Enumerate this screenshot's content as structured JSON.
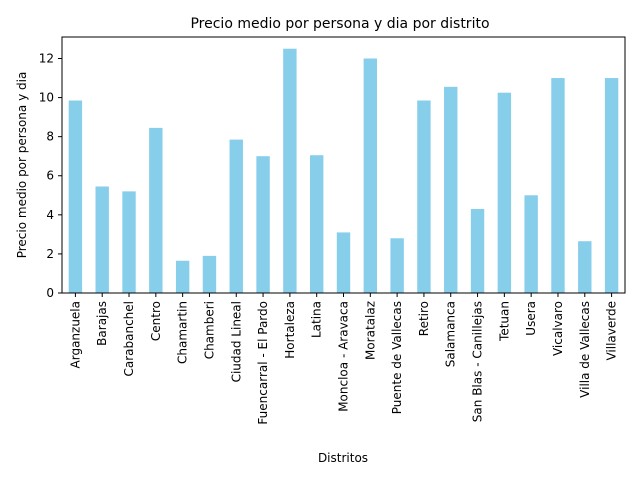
{
  "chart_data": {
    "type": "bar",
    "title": "Precio medio por persona y dia por distrito",
    "xlabel": "Distritos",
    "ylabel": "Precio medio por persona y dia",
    "ylim": [
      0,
      13.1
    ],
    "yticks": [
      0,
      2,
      4,
      6,
      8,
      10,
      12
    ],
    "grid": false,
    "legend": "none",
    "bar_color": "#87ceeb",
    "categories": [
      "Arganzuela",
      "Barajas",
      "Carabanchel",
      "Centro",
      "Chamartin",
      "Chamberi",
      "Ciudad Lineal",
      "Fuencarral - El Pardo",
      "Hortaleza",
      "Latina",
      "Moncloa - Aravaca",
      "Moratalaz",
      "Puente de Vallecas",
      "Retiro",
      "Salamanca",
      "San Blas - Canillejas",
      "Tetuan",
      "Usera",
      "Vicalvaro",
      "Villa de Vallecas",
      "Villaverde"
    ],
    "values": [
      9.85,
      5.45,
      5.2,
      8.45,
      1.65,
      1.9,
      7.85,
      7.0,
      12.5,
      7.05,
      3.1,
      12.0,
      2.8,
      9.85,
      10.55,
      4.3,
      10.25,
      5.0,
      11.0,
      2.65,
      11.0
    ]
  }
}
